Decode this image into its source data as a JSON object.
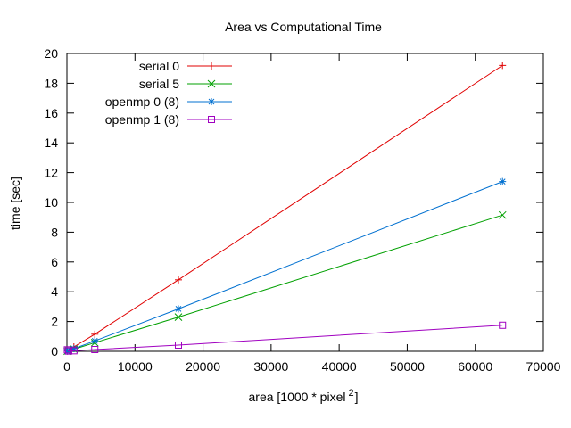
{
  "chart_data": {
    "type": "line",
    "title": "Area vs Computational Time",
    "xlabel": "area [1000 * pixel",
    "xlabel_sup": "2",
    "xlabel_end": "]",
    "ylabel": "time [sec]",
    "xlim": [
      0,
      70000
    ],
    "ylim": [
      0,
      20
    ],
    "xticks": [
      0,
      10000,
      20000,
      30000,
      40000,
      50000,
      60000,
      70000
    ],
    "yticks": [
      0,
      2,
      4,
      6,
      8,
      10,
      12,
      14,
      16,
      18,
      20
    ],
    "grid": false,
    "legend_position": "top-left",
    "series": [
      {
        "name": "serial 0",
        "color": "#e00000",
        "marker": "plus",
        "x": [
          64,
          256,
          1024,
          4096,
          16384,
          64000
        ],
        "y": [
          0.02,
          0.07,
          0.3,
          1.15,
          4.8,
          19.2
        ]
      },
      {
        "name": "serial 5",
        "color": "#00a000",
        "marker": "cross",
        "x": [
          64,
          256,
          1024,
          4096,
          16384,
          64000
        ],
        "y": [
          0.01,
          0.04,
          0.14,
          0.58,
          2.3,
          9.15
        ]
      },
      {
        "name": "openmp 0 (8)",
        "color": "#0070d0",
        "marker": "star",
        "x": [
          64,
          256,
          1024,
          4096,
          16384,
          64000
        ],
        "y": [
          0.02,
          0.05,
          0.18,
          0.7,
          2.85,
          11.4
        ]
      },
      {
        "name": "openmp 1 (8)",
        "color": "#a000c0",
        "marker": "square",
        "x": [
          64,
          256,
          1024,
          4096,
          16384,
          64000
        ],
        "y": [
          0.1,
          0.02,
          0.04,
          0.12,
          0.42,
          1.75
        ]
      }
    ]
  }
}
